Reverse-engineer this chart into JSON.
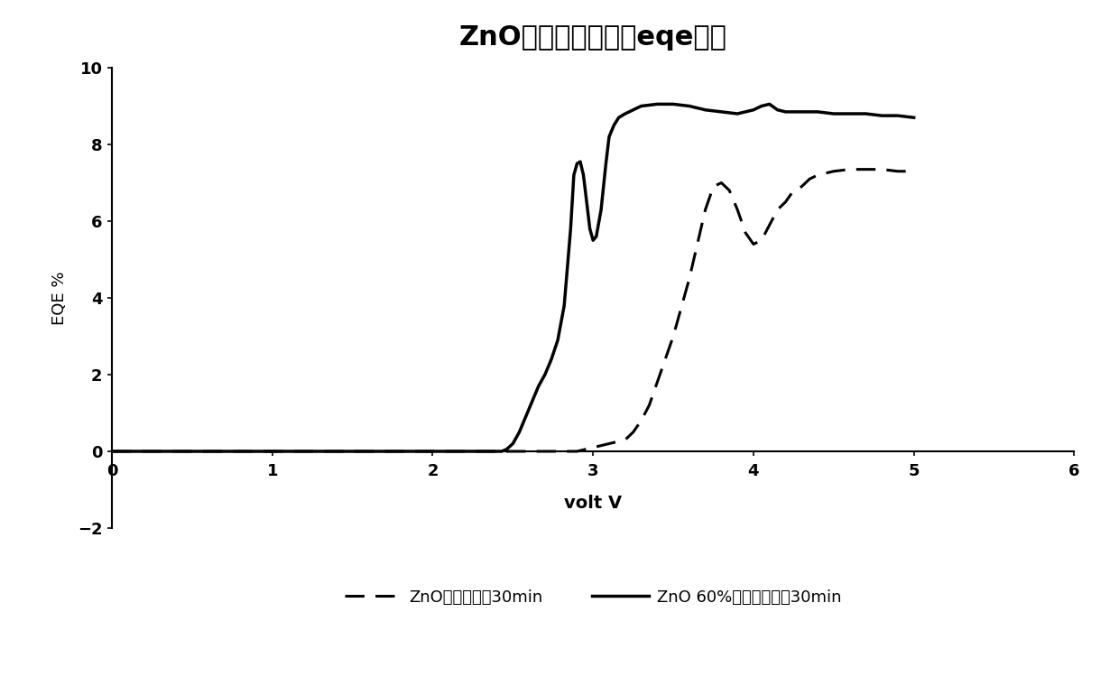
{
  "title": "ZnO层不同处理电压eqe曲线",
  "xlabel": "volt V",
  "ylabel": "EQE %",
  "xlim": [
    0,
    6
  ],
  "ylim": [
    -2,
    10
  ],
  "xticks": [
    0,
    1,
    2,
    3,
    4,
    5,
    6
  ],
  "yticks": [
    -2,
    0,
    2,
    4,
    6,
    8,
    10
  ],
  "bg_color": "#ffffff",
  "line_color": "#000000",
  "solid_line": {
    "label": "ZnO 60%湿度空气静置30min",
    "x": [
      0,
      0.5,
      1.0,
      1.5,
      2.0,
      2.35,
      2.4,
      2.43,
      2.46,
      2.5,
      2.54,
      2.58,
      2.62,
      2.66,
      2.7,
      2.74,
      2.78,
      2.82,
      2.86,
      2.88,
      2.9,
      2.92,
      2.94,
      2.96,
      2.98,
      3.0,
      3.02,
      3.05,
      3.08,
      3.1,
      3.13,
      3.16,
      3.2,
      3.25,
      3.3,
      3.4,
      3.5,
      3.6,
      3.7,
      3.8,
      3.9,
      4.0,
      4.05,
      4.1,
      4.15,
      4.2,
      4.25,
      4.3,
      4.4,
      4.5,
      4.6,
      4.7,
      4.8,
      4.9,
      5.0
    ],
    "y": [
      0,
      0,
      0,
      0,
      0,
      0,
      0,
      0,
      0.05,
      0.2,
      0.5,
      0.9,
      1.3,
      1.7,
      2.0,
      2.4,
      2.9,
      3.8,
      5.8,
      7.2,
      7.5,
      7.55,
      7.2,
      6.5,
      5.8,
      5.5,
      5.6,
      6.3,
      7.5,
      8.2,
      8.5,
      8.7,
      8.8,
      8.9,
      9.0,
      9.05,
      9.05,
      9.0,
      8.9,
      8.85,
      8.8,
      8.9,
      9.0,
      9.05,
      8.9,
      8.85,
      8.85,
      8.85,
      8.85,
      8.8,
      8.8,
      8.8,
      8.75,
      8.75,
      8.7
    ]
  },
  "dashed_line": {
    "label": "ZnO手套箱静置30min",
    "x": [
      0,
      0.5,
      1.0,
      1.5,
      2.0,
      2.5,
      2.8,
      2.9,
      2.95,
      3.0,
      3.05,
      3.1,
      3.15,
      3.2,
      3.25,
      3.3,
      3.35,
      3.4,
      3.5,
      3.6,
      3.7,
      3.75,
      3.8,
      3.85,
      3.9,
      3.95,
      4.0,
      4.05,
      4.1,
      4.15,
      4.2,
      4.25,
      4.3,
      4.35,
      4.4,
      4.5,
      4.6,
      4.7,
      4.8,
      4.9,
      5.0
    ],
    "y": [
      0,
      0,
      0,
      0,
      0,
      0,
      0,
      0,
      0.05,
      0.1,
      0.15,
      0.2,
      0.25,
      0.3,
      0.5,
      0.8,
      1.2,
      1.8,
      3.0,
      4.5,
      6.3,
      6.9,
      7.0,
      6.8,
      6.3,
      5.7,
      5.4,
      5.5,
      5.9,
      6.3,
      6.5,
      6.8,
      6.9,
      7.1,
      7.2,
      7.3,
      7.35,
      7.35,
      7.35,
      7.3,
      7.3
    ]
  }
}
